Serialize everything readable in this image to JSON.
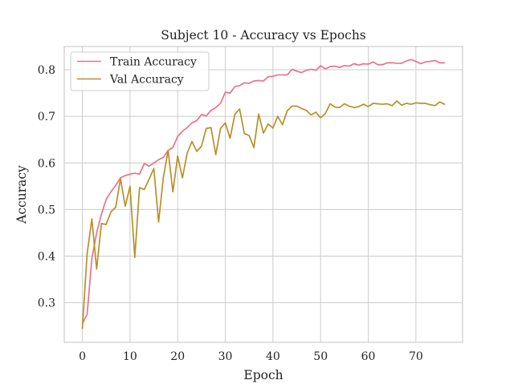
{
  "chart_data": {
    "type": "line",
    "title": "Subject 10 - Accuracy vs Epochs",
    "xlabel": "Epoch",
    "ylabel": "Accuracy",
    "xlim": [
      -3.8,
      79.8
    ],
    "ylim": [
      0.215,
      0.85
    ],
    "xticks": [
      0,
      10,
      20,
      30,
      40,
      50,
      60,
      70
    ],
    "yticks": [
      0.3,
      0.4,
      0.5,
      0.6,
      0.7,
      0.8
    ],
    "grid": true,
    "legend_position": "top-left",
    "x": [
      0,
      1,
      2,
      3,
      4,
      5,
      6,
      7,
      8,
      9,
      10,
      11,
      12,
      13,
      14,
      15,
      16,
      17,
      18,
      19,
      20,
      21,
      22,
      23,
      24,
      25,
      26,
      27,
      28,
      29,
      30,
      31,
      32,
      33,
      34,
      35,
      36,
      37,
      38,
      39,
      40,
      41,
      42,
      43,
      44,
      45,
      46,
      47,
      48,
      49,
      50,
      51,
      52,
      53,
      54,
      55,
      56,
      57,
      58,
      59,
      60,
      61,
      62,
      63,
      64,
      65,
      66,
      67,
      68,
      69,
      70,
      71,
      72,
      73,
      74,
      75,
      76
    ],
    "series": [
      {
        "name": "Train Accuracy",
        "color": "#f0708a",
        "values": [
          0.255,
          0.275,
          0.395,
          0.45,
          0.49,
          0.522,
          0.538,
          0.552,
          0.568,
          0.573,
          0.576,
          0.578,
          0.576,
          0.599,
          0.593,
          0.6,
          0.607,
          0.612,
          0.627,
          0.633,
          0.657,
          0.668,
          0.676,
          0.686,
          0.691,
          0.704,
          0.701,
          0.713,
          0.719,
          0.728,
          0.752,
          0.75,
          0.764,
          0.766,
          0.772,
          0.771,
          0.776,
          0.777,
          0.776,
          0.785,
          0.786,
          0.789,
          0.789,
          0.789,
          0.801,
          0.797,
          0.794,
          0.799,
          0.801,
          0.799,
          0.809,
          0.802,
          0.807,
          0.808,
          0.805,
          0.809,
          0.808,
          0.813,
          0.81,
          0.813,
          0.812,
          0.817,
          0.811,
          0.811,
          0.815,
          0.815,
          0.814,
          0.814,
          0.819,
          0.822,
          0.818,
          0.813,
          0.817,
          0.818,
          0.82,
          0.815,
          0.815
        ]
      },
      {
        "name": "Val Accuracy",
        "color": "#b8902a",
        "values": [
          0.245,
          0.405,
          0.48,
          0.372,
          0.47,
          0.468,
          0.495,
          0.505,
          0.566,
          0.507,
          0.55,
          0.397,
          0.547,
          0.543,
          0.565,
          0.588,
          0.473,
          0.569,
          0.627,
          0.538,
          0.615,
          0.568,
          0.621,
          0.646,
          0.625,
          0.636,
          0.674,
          0.676,
          0.618,
          0.674,
          0.686,
          0.653,
          0.704,
          0.716,
          0.663,
          0.659,
          0.633,
          0.705,
          0.664,
          0.684,
          0.675,
          0.7,
          0.682,
          0.712,
          0.722,
          0.722,
          0.717,
          0.713,
          0.703,
          0.709,
          0.697,
          0.706,
          0.727,
          0.72,
          0.719,
          0.727,
          0.722,
          0.719,
          0.721,
          0.726,
          0.721,
          0.728,
          0.727,
          0.726,
          0.727,
          0.723,
          0.733,
          0.724,
          0.728,
          0.726,
          0.729,
          0.728,
          0.728,
          0.725,
          0.723,
          0.731,
          0.726
        ]
      }
    ]
  }
}
